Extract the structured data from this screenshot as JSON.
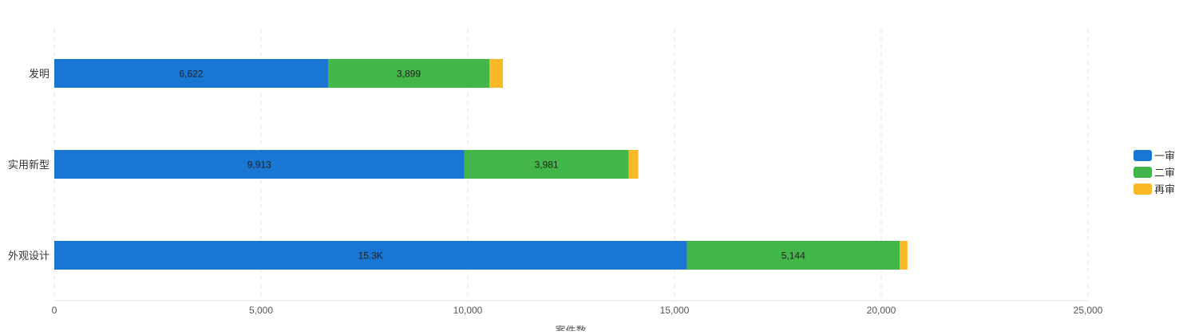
{
  "chart_data": {
    "type": "bar",
    "orientation": "horizontal",
    "stacked": true,
    "categories": [
      "发明",
      "实用新型",
      "外观设计"
    ],
    "series": [
      {
        "name": "一审",
        "color": "#1976d2",
        "values": [
          6622,
          9913,
          15300
        ],
        "labels": [
          "6,622",
          "9,913",
          "15.3K"
        ]
      },
      {
        "name": "二审",
        "color": "#43b649",
        "values": [
          3899,
          3981,
          5144
        ],
        "labels": [
          "3,899",
          "3,981",
          "5,144"
        ]
      },
      {
        "name": "再审",
        "color": "#fbb927",
        "values": [
          330,
          230,
          190
        ],
        "labels": [
          "",
          "",
          ""
        ]
      }
    ],
    "xlim": [
      0,
      25000
    ],
    "xticks": [
      "0",
      "5,000",
      "10,000",
      "15,000",
      "20,000",
      "25,000"
    ],
    "xlabel": "案件数",
    "grid": "vertical-dashed",
    "legend_position": "right"
  }
}
